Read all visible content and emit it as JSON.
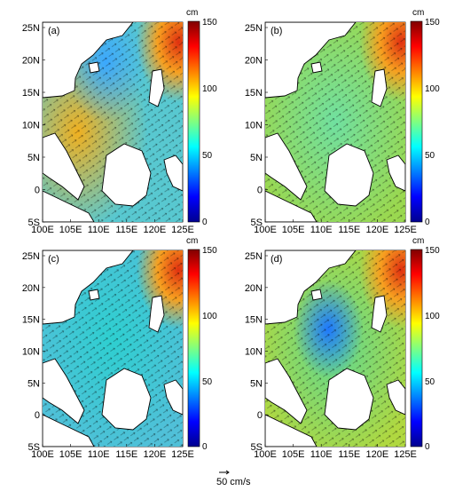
{
  "figure": {
    "panels": [
      {
        "id": "a",
        "label": "(a)"
      },
      {
        "id": "b",
        "label": "(b)"
      },
      {
        "id": "c",
        "label": "(c)"
      },
      {
        "id": "d",
        "label": "(d)"
      }
    ],
    "lon_ticks": [
      "100E",
      "105E",
      "110E",
      "115E",
      "120E",
      "125E"
    ],
    "lat_ticks": [
      "25N",
      "20N",
      "15N",
      "10N",
      "5N",
      "0",
      "5S"
    ],
    "colorbar": {
      "unit": "cm",
      "ticks": [
        "150",
        "100",
        "50",
        "0"
      ],
      "range": [
        0,
        150
      ],
      "colormap": "jet"
    },
    "vector_scale": {
      "label": "50 cm/s"
    },
    "colors": {
      "land": "#ffffff",
      "coast": "#000000",
      "jet": [
        "#00008f",
        "#0000ff",
        "#0080ff",
        "#00ffff",
        "#80ff80",
        "#ffff00",
        "#ff8000",
        "#ff0000",
        "#800000"
      ]
    }
  }
}
